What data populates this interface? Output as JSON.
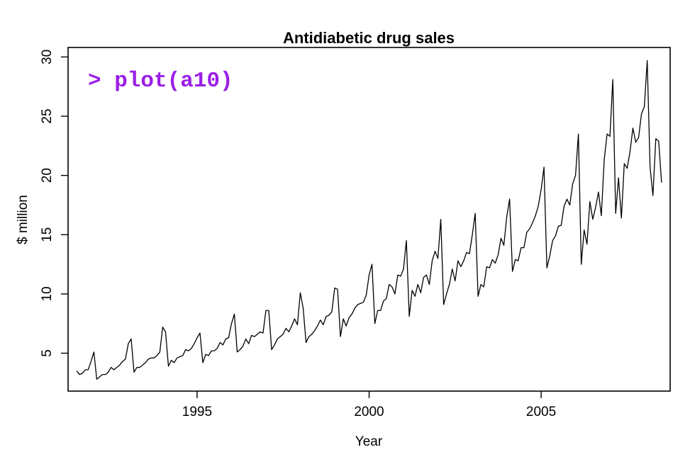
{
  "chart_data": {
    "type": "line",
    "title": "Antidiabetic drug sales",
    "xlabel": "Year",
    "ylabel": "$ million",
    "annotation": "> plot(a10)",
    "annotation_color": "#9b1ee6",
    "line_color": "#000000",
    "grid": false,
    "legend": "none",
    "xlim": [
      1991.25,
      2008.75
    ],
    "ylim": [
      1.8,
      30.8
    ],
    "x_ticks": [
      1995,
      2000,
      2005
    ],
    "y_ticks": [
      5,
      10,
      15,
      20,
      25,
      30
    ],
    "x_start": 1991.5,
    "x_step": 0.08333333,
    "series": [
      {
        "values": [
          3.5,
          3.2,
          3.3,
          3.6,
          3.6,
          4.3,
          5.1,
          2.8,
          3.0,
          3.2,
          3.2,
          3.4,
          3.8,
          3.6,
          3.8,
          4.0,
          4.3,
          4.5,
          5.8,
          6.2,
          3.4,
          3.8,
          3.8,
          4.0,
          4.2,
          4.5,
          4.6,
          4.6,
          4.8,
          5.1,
          7.2,
          6.8,
          3.9,
          4.4,
          4.2,
          4.6,
          4.7,
          4.8,
          5.3,
          5.2,
          5.4,
          5.8,
          6.3,
          6.7,
          4.2,
          4.9,
          4.8,
          5.2,
          5.2,
          5.4,
          5.9,
          5.7,
          6.2,
          6.3,
          7.5,
          8.3,
          5.1,
          5.3,
          5.6,
          6.2,
          5.8,
          6.5,
          6.4,
          6.6,
          6.8,
          6.7,
          8.6,
          8.6,
          5.3,
          5.7,
          6.2,
          6.4,
          6.6,
          7.1,
          6.8,
          7.3,
          7.9,
          7.4,
          10.1,
          8.8,
          5.9,
          6.4,
          6.6,
          6.9,
          7.3,
          7.8,
          7.4,
          8.1,
          8.2,
          8.5,
          10.5,
          10.4,
          6.4,
          7.9,
          7.3,
          8.0,
          8.3,
          8.8,
          9.1,
          9.2,
          9.3,
          9.9,
          11.6,
          12.5,
          7.5,
          8.6,
          8.6,
          9.4,
          9.6,
          10.8,
          10.6,
          10.0,
          11.6,
          11.5,
          12.1,
          14.5,
          8.1,
          10.3,
          9.8,
          10.8,
          10.1,
          11.4,
          11.6,
          10.8,
          12.8,
          13.6,
          13.0,
          16.3,
          9.1,
          10.0,
          10.8,
          12.1,
          11.1,
          12.8,
          12.3,
          12.8,
          13.5,
          13.4,
          15.0,
          16.8,
          9.8,
          10.8,
          10.6,
          12.3,
          12.2,
          12.9,
          12.6,
          13.3,
          14.7,
          14.1,
          16.5,
          18.0,
          11.9,
          12.9,
          12.8,
          13.9,
          13.9,
          15.2,
          15.5,
          16.0,
          16.6,
          17.4,
          18.8,
          20.7,
          12.2,
          13.2,
          14.5,
          14.9,
          15.7,
          15.8,
          17.4,
          18.0,
          17.5,
          19.3,
          20.0,
          23.5,
          12.5,
          15.4,
          14.2,
          17.8,
          16.3,
          17.3,
          18.6,
          16.6,
          21.3,
          23.5,
          23.3,
          28.1,
          16.8,
          19.8,
          16.4,
          21.0,
          20.6,
          22.0,
          24.0,
          22.8,
          23.2,
          25.2,
          25.8,
          29.7,
          20.7,
          18.3,
          23.1,
          22.9,
          19.4
        ]
      }
    ]
  }
}
